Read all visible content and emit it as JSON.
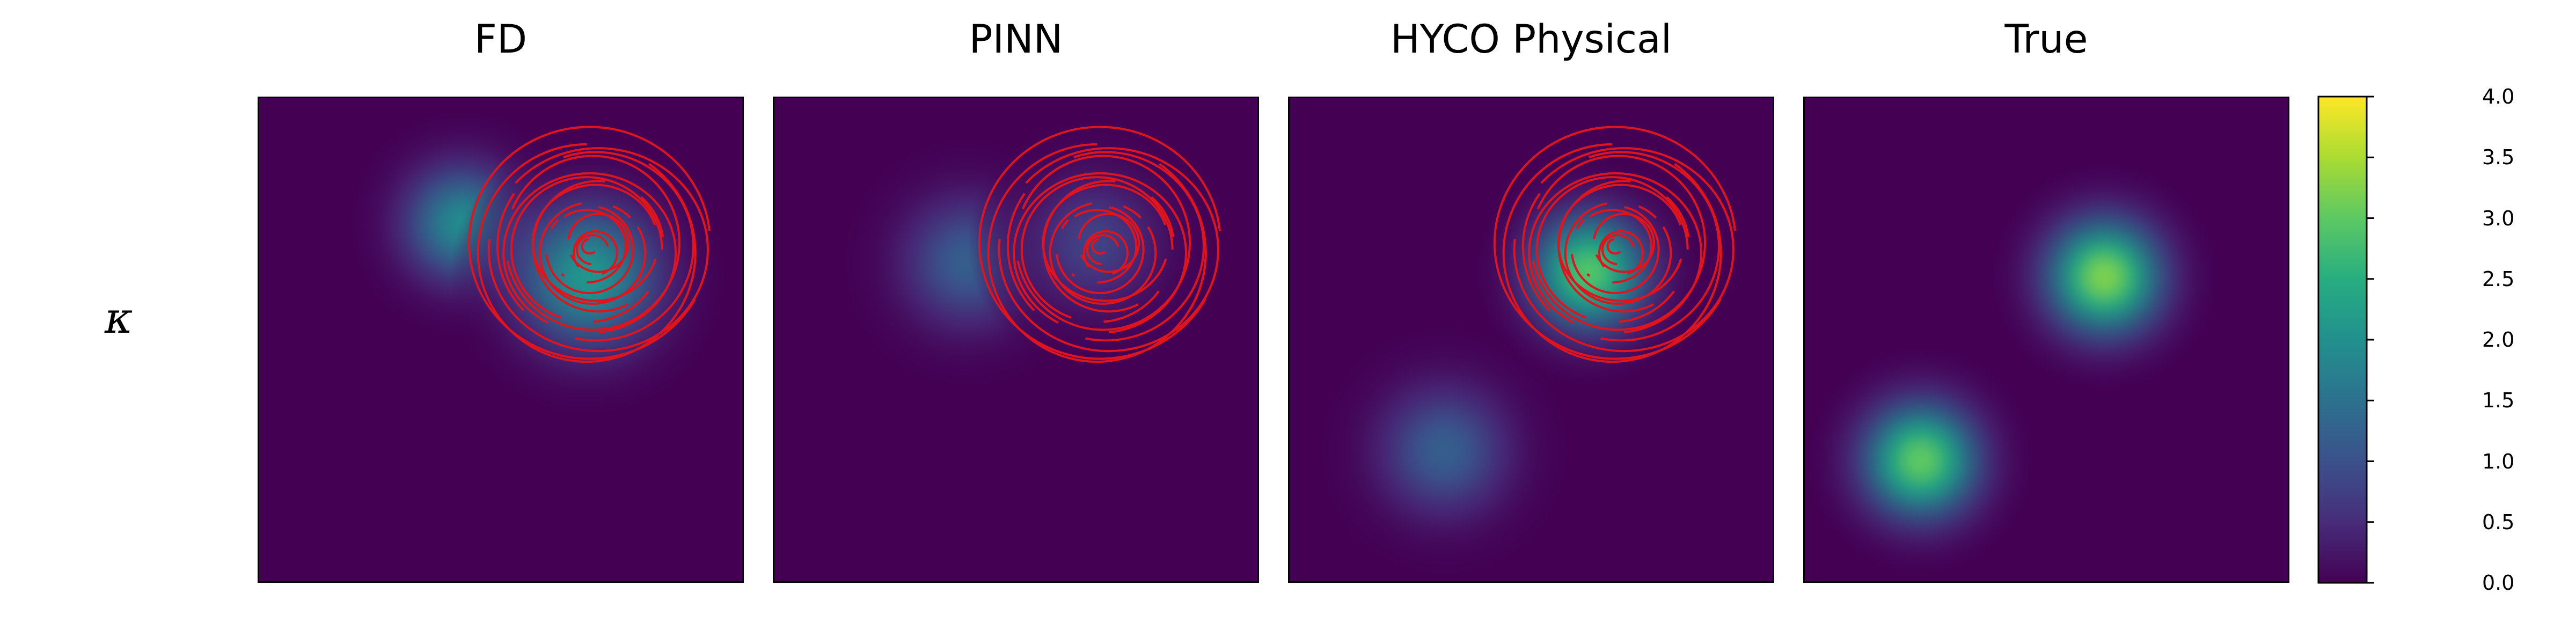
{
  "row_label": "κ",
  "colors": {
    "background": "#440154",
    "contour": "#e0141c"
  },
  "chart_data": {
    "type": "heatmap",
    "colormap": "viridis",
    "colorbar": {
      "range": [
        0,
        4
      ],
      "ticks": [
        "0.0",
        "0.5",
        "1.0",
        "1.5",
        "2.0",
        "2.5",
        "3.0",
        "3.5",
        "4.0"
      ]
    },
    "grid": false,
    "panels": [
      {
        "title": "FD",
        "blobs": [
          {
            "cx": 0.42,
            "cy": 0.74,
            "sigma": 0.09,
            "amp": 1.9
          },
          {
            "cx": 0.68,
            "cy": 0.63,
            "sigma": 0.11,
            "amp": 2.1
          }
        ],
        "contours": {
          "cx": 0.69,
          "cy": 0.69,
          "rings": 16,
          "max_radius": 0.24
        }
      },
      {
        "title": "PINN",
        "blobs": [
          {
            "cx": 0.4,
            "cy": 0.66,
            "sigma": 0.1,
            "amp": 1.2
          },
          {
            "cx": 0.66,
            "cy": 0.7,
            "sigma": 0.1,
            "amp": 0.8
          }
        ],
        "contours": {
          "cx": 0.68,
          "cy": 0.69,
          "rings": 16,
          "max_radius": 0.24
        }
      },
      {
        "title": "HYCO Physical",
        "blobs": [
          {
            "cx": 0.62,
            "cy": 0.64,
            "sigma": 0.09,
            "amp": 2.9
          },
          {
            "cx": 0.32,
            "cy": 0.27,
            "sigma": 0.1,
            "amp": 1.2
          }
        ],
        "contours": {
          "cx": 0.68,
          "cy": 0.69,
          "rings": 16,
          "max_radius": 0.24
        }
      },
      {
        "title": "True",
        "blobs": [
          {
            "cx": 0.62,
            "cy": 0.63,
            "sigma": 0.09,
            "amp": 3.2
          },
          {
            "cx": 0.24,
            "cy": 0.25,
            "sigma": 0.09,
            "amp": 3.0
          }
        ],
        "contours": null
      }
    ]
  }
}
